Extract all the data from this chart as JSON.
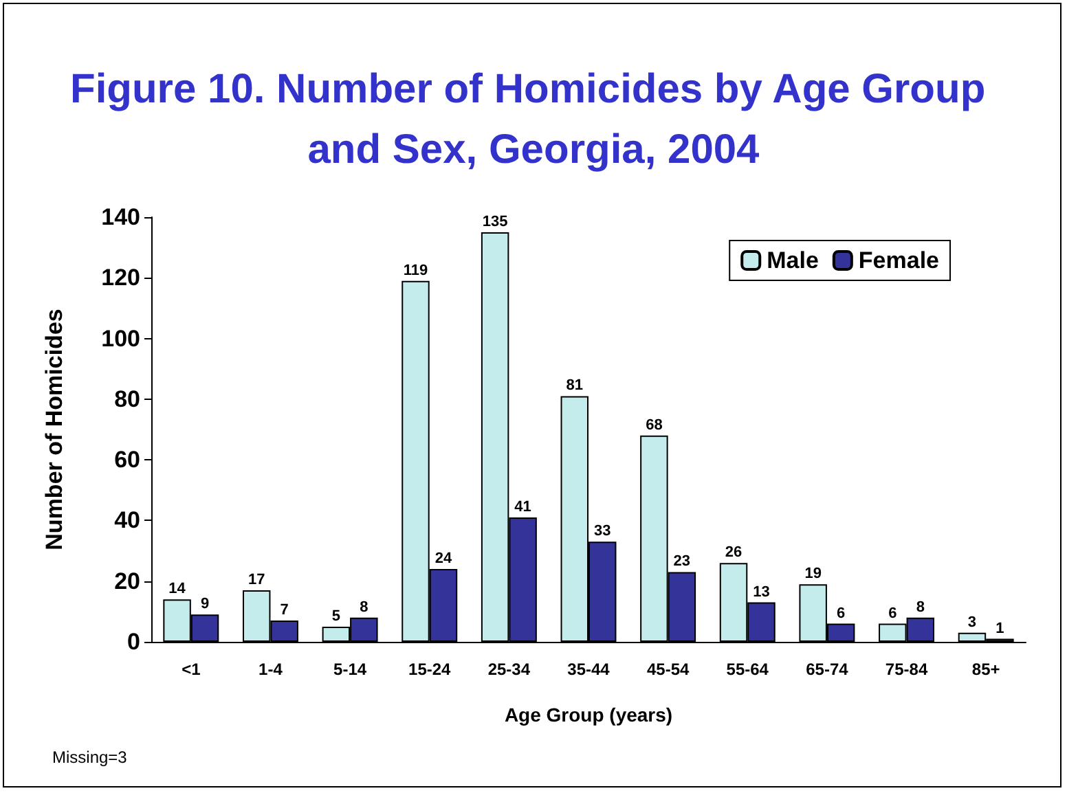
{
  "chart_data": {
    "type": "bar",
    "title": "Figure 10. Number of Homicides by Age Group and Sex, Georgia, 2004",
    "xlabel": "Age Group (years)",
    "ylabel": "Number of Homicides",
    "categories": [
      "<1",
      "1-4",
      "5-14",
      "15-24",
      "25-34",
      "35-44",
      "45-54",
      "55-64",
      "65-74",
      "75-84",
      "85+"
    ],
    "series": [
      {
        "name": "Male",
        "color": "#c4ecec",
        "values": [
          14,
          17,
          5,
          119,
          135,
          81,
          68,
          26,
          19,
          6,
          3
        ]
      },
      {
        "name": "Female",
        "color": "#333399",
        "values": [
          9,
          7,
          8,
          24,
          41,
          33,
          23,
          13,
          6,
          8,
          1
        ]
      }
    ],
    "ylim": [
      0,
      140
    ],
    "yticks": [
      0,
      20,
      40,
      60,
      80,
      100,
      120,
      140
    ],
    "grid": false,
    "legend": "top right",
    "data_labels": true,
    "annotations": [
      "Missing=3"
    ]
  }
}
